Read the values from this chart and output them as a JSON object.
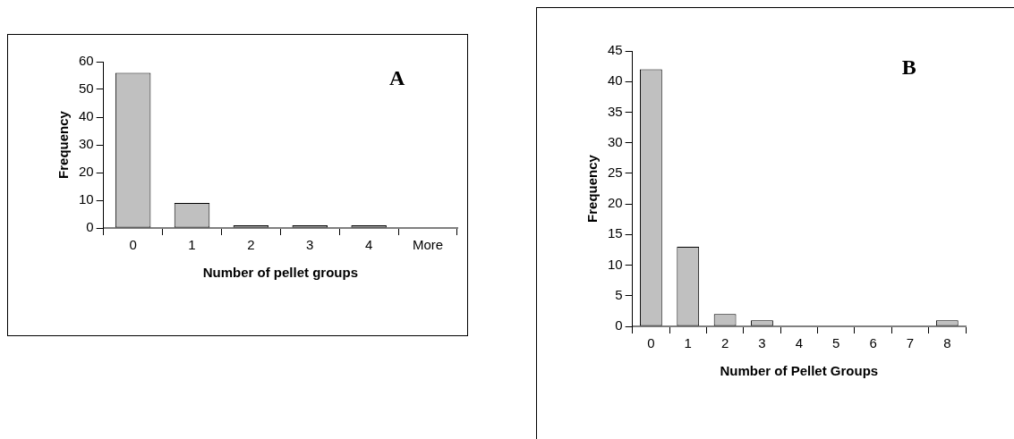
{
  "chart_data": [
    {
      "type": "bar",
      "xlabel": "Number of pellet groups",
      "ylabel": "Frequency",
      "categories": [
        "0",
        "1",
        "2",
        "3",
        "4",
        "More"
      ],
      "values": [
        56,
        9,
        1,
        1,
        1,
        0
      ],
      "color": "#c0c0c0",
      "ylim": [
        0,
        60
      ],
      "yticks": [
        0,
        10,
        20,
        30,
        40,
        50,
        60
      ],
      "grid": false,
      "legend": false,
      "annotations": [
        "A"
      ]
    },
    {
      "type": "bar",
      "xlabel": "Number of Pellet Groups",
      "ylabel": "Frequency",
      "categories": [
        "0",
        "1",
        "2",
        "3",
        "4",
        "5",
        "6",
        "7",
        "8"
      ],
      "values": [
        42,
        13,
        2,
        1,
        0,
        0,
        0,
        0,
        1
      ],
      "color": "#c0c0c0",
      "ylim": [
        0,
        45
      ],
      "yticks": [
        0,
        5,
        10,
        15,
        20,
        25,
        30,
        35,
        40,
        45
      ],
      "grid": false,
      "legend": false,
      "annotations": [
        "B"
      ]
    }
  ]
}
